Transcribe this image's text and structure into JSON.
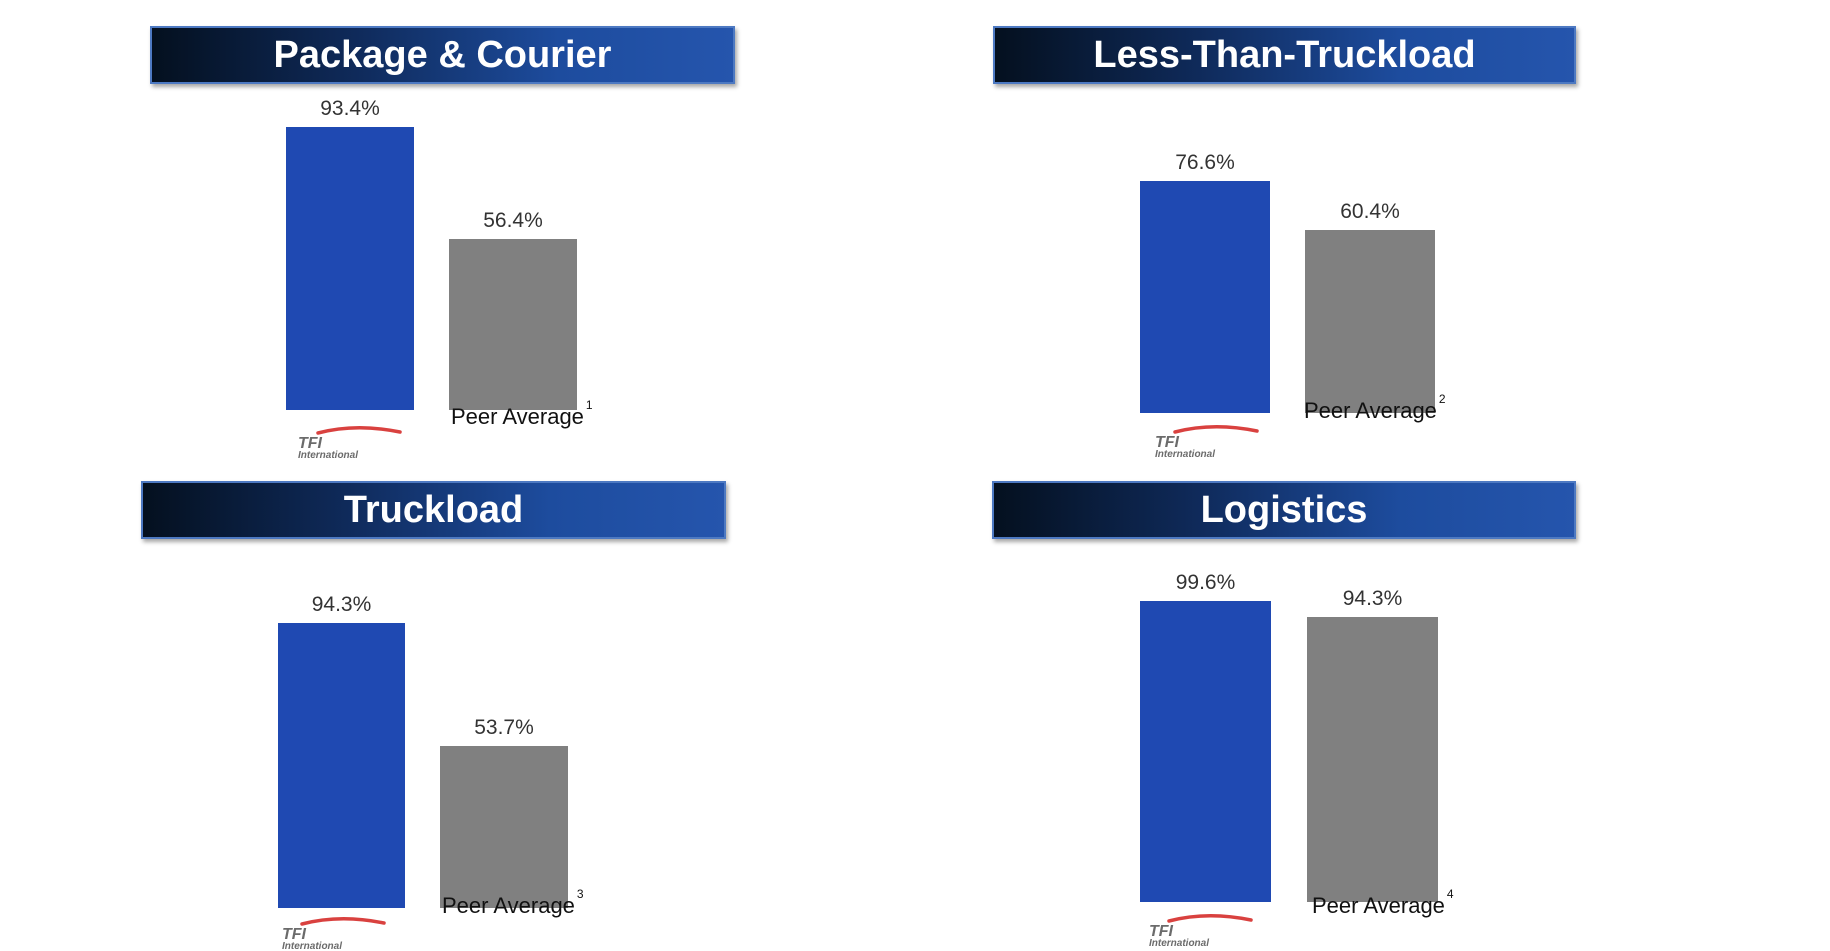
{
  "colors": {
    "tfi_bar": "#1f49b2",
    "peer_bar": "#808080",
    "banner_start": "#04101f",
    "banner_end": "#2555ad"
  },
  "logo": {
    "brand": "TFI",
    "sub": "International",
    "icon": "tfi-international-logo"
  },
  "chart_data": [
    {
      "type": "bar",
      "title": "Package & Courier",
      "categories": [
        "TFI International",
        "Peer Average"
      ],
      "footnote": "1",
      "values": [
        93.4,
        56.4
      ],
      "value_labels": [
        "93.4%",
        "56.4%"
      ]
    },
    {
      "type": "bar",
      "title": "Less-Than-Truckload",
      "categories": [
        "TFI International",
        "Peer Average"
      ],
      "footnote": "2",
      "values": [
        76.6,
        60.4
      ],
      "value_labels": [
        "76.6%",
        "60.4%"
      ]
    },
    {
      "type": "bar",
      "title": "Truckload",
      "categories": [
        "TFI International",
        "Peer Average"
      ],
      "footnote": "3",
      "values": [
        94.3,
        53.7
      ],
      "value_labels": [
        "94.3%",
        "53.7%"
      ]
    },
    {
      "type": "bar",
      "title": "Logistics",
      "categories": [
        "TFI International",
        "Peer Average"
      ],
      "footnote": "4",
      "values": [
        99.6,
        94.3
      ],
      "value_labels": [
        "99.6%",
        "94.3%"
      ]
    }
  ]
}
